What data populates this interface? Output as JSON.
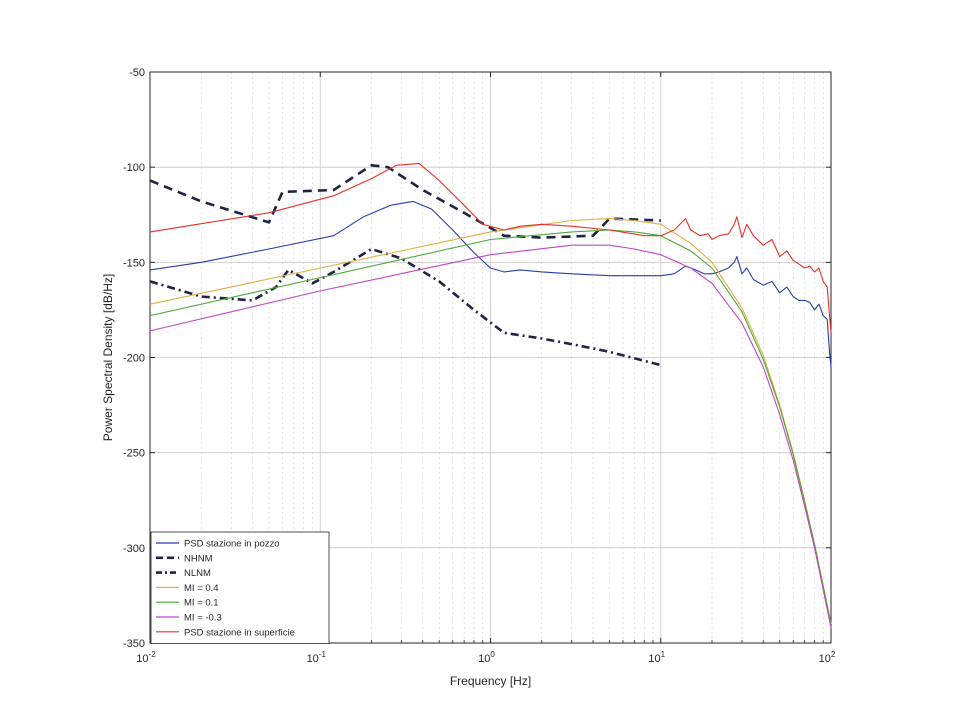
{
  "chart_data": {
    "type": "line",
    "title": "",
    "xlabel": "Frequency [Hz]",
    "ylabel": "Power Spectral Density [dB/Hz]",
    "xscale": "log",
    "xlim": [
      0.01,
      100
    ],
    "ylim": [
      -350,
      -50
    ],
    "grid": true,
    "legend_position": "bottom-left",
    "x_ticks": [
      {
        "value": 0.01,
        "base": "10",
        "exp": "-2"
      },
      {
        "value": 0.1,
        "base": "10",
        "exp": "-1"
      },
      {
        "value": 1,
        "base": "10",
        "exp": "0"
      },
      {
        "value": 10,
        "base": "10",
        "exp": "1"
      },
      {
        "value": 100,
        "base": "10",
        "exp": "2"
      }
    ],
    "y_ticks": [
      {
        "value": -50,
        "label": "-50"
      },
      {
        "value": -100,
        "label": "-100"
      },
      {
        "value": -150,
        "label": "-150"
      },
      {
        "value": -200,
        "label": "-200"
      },
      {
        "value": -250,
        "label": "-250"
      },
      {
        "value": -300,
        "label": "-300"
      },
      {
        "value": -350,
        "label": "-350"
      }
    ],
    "series": [
      {
        "name": "PSD stazione in pozzo",
        "color": "#2a3fa8",
        "style": "solid",
        "x": [
          0.01,
          0.02,
          0.05,
          0.12,
          0.18,
          0.26,
          0.35,
          0.45,
          0.6,
          0.8,
          1.0,
          1.2,
          1.5,
          2,
          3,
          5,
          7,
          10,
          12,
          14,
          15,
          16,
          18,
          20,
          22,
          25,
          27,
          28,
          30,
          32,
          35,
          40,
          45,
          50,
          55,
          60,
          65,
          70,
          75,
          80,
          85,
          90,
          95,
          98,
          100
        ],
        "y": [
          -154,
          -150,
          -143,
          -136,
          -126,
          -120,
          -118,
          -122,
          -133,
          -145,
          -153,
          -155,
          -154,
          -155,
          -156,
          -157,
          -157,
          -157,
          -156,
          -152,
          -153,
          -154,
          -156,
          -156,
          -155,
          -153,
          -150,
          -147,
          -156,
          -153,
          -159,
          -162,
          -160,
          -166,
          -163,
          -168,
          -170,
          -170,
          -171,
          -175,
          -172,
          -178,
          -180,
          -197,
          -205
        ]
      },
      {
        "name": "NHNM",
        "color": "#1f2540",
        "style": "dashed",
        "x": [
          0.01,
          0.02,
          0.05,
          0.06,
          0.12,
          0.2,
          0.25,
          0.4,
          0.7,
          1.2,
          2,
          4,
          5,
          10
        ],
        "y": [
          -107,
          -118,
          -129,
          -113,
          -112,
          -99,
          -100,
          -112,
          -124,
          -136,
          -137,
          -136,
          -127,
          -128
        ]
      },
      {
        "name": "NLNM",
        "color": "#1f2540",
        "style": "dashdot",
        "x": [
          0.01,
          0.02,
          0.04,
          0.055,
          0.065,
          0.09,
          0.12,
          0.2,
          0.3,
          0.5,
          0.8,
          1.2,
          2,
          3,
          5,
          10
        ],
        "y": [
          -160,
          -168,
          -170,
          -163,
          -154,
          -161,
          -155,
          -143,
          -148,
          -160,
          -175,
          -187,
          -190,
          -193,
          -197,
          -204
        ]
      },
      {
        "name": "MI = 0.4",
        "color": "#e0b040",
        "style": "solid",
        "x": [
          0.01,
          0.1,
          1,
          3,
          5,
          7,
          10,
          15,
          20,
          30,
          40,
          50,
          60,
          70,
          80,
          90,
          100
        ],
        "y": [
          -172,
          -153,
          -134,
          -128,
          -127,
          -128,
          -130,
          -140,
          -150,
          -174,
          -199,
          -225,
          -250,
          -275,
          -298,
          -320,
          -340
        ]
      },
      {
        "name": "MI = 0.1",
        "color": "#4aaa38",
        "style": "solid",
        "x": [
          0.01,
          0.1,
          1,
          3,
          5,
          7,
          10,
          15,
          20,
          30,
          40,
          50,
          60,
          70,
          80,
          90,
          100
        ],
        "y": [
          -178,
          -158,
          -138,
          -134,
          -133,
          -134,
          -136,
          -144,
          -153,
          -176,
          -201,
          -226,
          -251,
          -276,
          -298,
          -320,
          -340
        ]
      },
      {
        "name": "MI = -0.3",
        "color": "#c046c8",
        "style": "solid",
        "x": [
          0.01,
          0.1,
          1,
          3,
          5,
          7,
          10,
          15,
          20,
          30,
          40,
          50,
          60,
          70,
          80,
          90,
          100
        ],
        "y": [
          -186,
          -165,
          -146,
          -141,
          -141,
          -143,
          -146,
          -153,
          -161,
          -182,
          -205,
          -230,
          -254,
          -278,
          -300,
          -322,
          -342
        ]
      },
      {
        "name": "PSD stazione in superficie",
        "color": "#e53228",
        "style": "solid",
        "x": [
          0.01,
          0.05,
          0.12,
          0.2,
          0.28,
          0.38,
          0.5,
          0.7,
          0.9,
          1.2,
          1.5,
          2,
          3,
          5,
          8,
          10,
          12,
          14,
          15,
          17,
          19,
          20,
          22,
          25,
          27,
          28,
          30,
          32,
          35,
          40,
          45,
          50,
          55,
          60,
          65,
          70,
          75,
          80,
          85,
          90,
          95,
          98,
          100
        ],
        "y": [
          -134,
          -124,
          -115,
          -106,
          -99,
          -98,
          -107,
          -120,
          -130,
          -133,
          -131,
          -130,
          -131,
          -133,
          -136,
          -136,
          -133,
          -127,
          -133,
          -136,
          -135,
          -138,
          -136,
          -135,
          -130,
          -126,
          -137,
          -130,
          -136,
          -141,
          -138,
          -147,
          -144,
          -149,
          -151,
          -153,
          -152,
          -155,
          -153,
          -160,
          -163,
          -178,
          -187
        ]
      }
    ]
  }
}
